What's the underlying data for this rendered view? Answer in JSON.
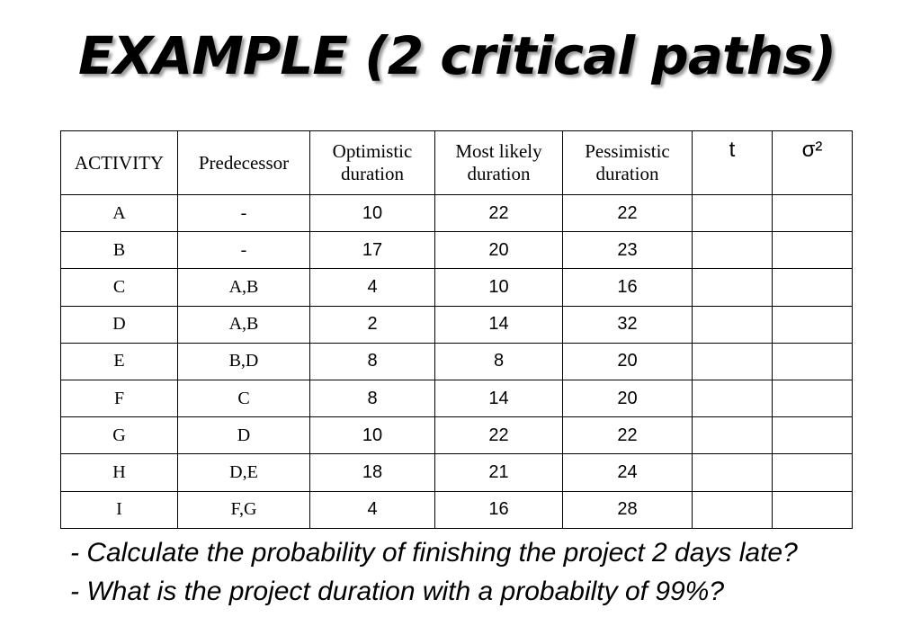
{
  "title": "EXAMPLE (2 critical paths)",
  "table": {
    "headers": [
      "ACTIVITY",
      "Predecessor",
      "Optimistic duration",
      "Most likely duration",
      "Pessimistic duration",
      "t",
      "σ²"
    ],
    "rows": [
      {
        "activity": "A",
        "pred": "-",
        "opt": "10",
        "ml": "22",
        "pes": "22",
        "t": "",
        "var": ""
      },
      {
        "activity": "B",
        "pred": "-",
        "opt": "17",
        "ml": "20",
        "pes": "23",
        "t": "",
        "var": ""
      },
      {
        "activity": "C",
        "pred": "A,B",
        "opt": "4",
        "ml": "10",
        "pes": "16",
        "t": "",
        "var": ""
      },
      {
        "activity": "D",
        "pred": "A,B",
        "opt": "2",
        "ml": "14",
        "pes": "32",
        "t": "",
        "var": ""
      },
      {
        "activity": "E",
        "pred": "B,D",
        "opt": "8",
        "ml": "8",
        "pes": "20",
        "t": "",
        "var": ""
      },
      {
        "activity": "F",
        "pred": "C",
        "opt": "8",
        "ml": "14",
        "pes": "20",
        "t": "",
        "var": ""
      },
      {
        "activity": "G",
        "pred": "D",
        "opt": "10",
        "ml": "22",
        "pes": "22",
        "t": "",
        "var": ""
      },
      {
        "activity": "H",
        "pred": "D,E",
        "opt": "18",
        "ml": "21",
        "pes": "24",
        "t": "",
        "var": ""
      },
      {
        "activity": "I",
        "pred": "F,G",
        "opt": "4",
        "ml": "16",
        "pes": "28",
        "t": "",
        "var": ""
      }
    ]
  },
  "questions": [
    "- Calculate the probability of finishing the project 2 days late?",
    "- What is the project duration with a probabilty of 99%?"
  ]
}
